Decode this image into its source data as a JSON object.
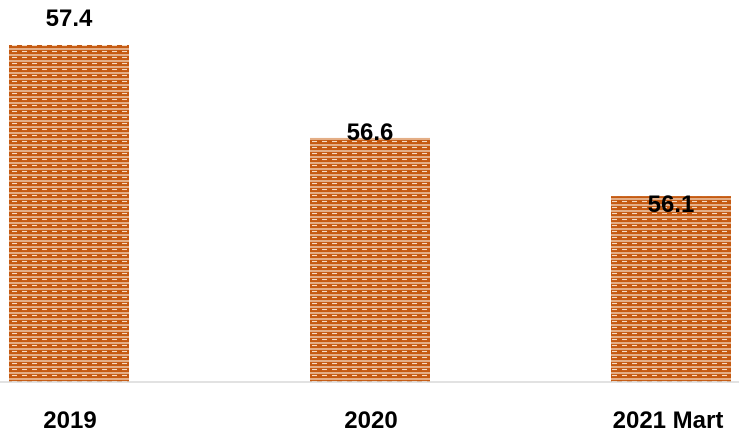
{
  "chart_data": {
    "type": "bar",
    "title": "",
    "xlabel": "",
    "ylabel": "",
    "categories": [
      "2019",
      "2020",
      "2021 Mart"
    ],
    "values": [
      57.4,
      56.6,
      56.1
    ],
    "data_labels": [
      "57.4",
      "56.6",
      "56.1"
    ],
    "ylim": [
      54.5,
      57.4
    ],
    "grid": false,
    "legend": "none",
    "bar_color": "#c55a11",
    "bar_pattern": "brick-hatch"
  }
}
